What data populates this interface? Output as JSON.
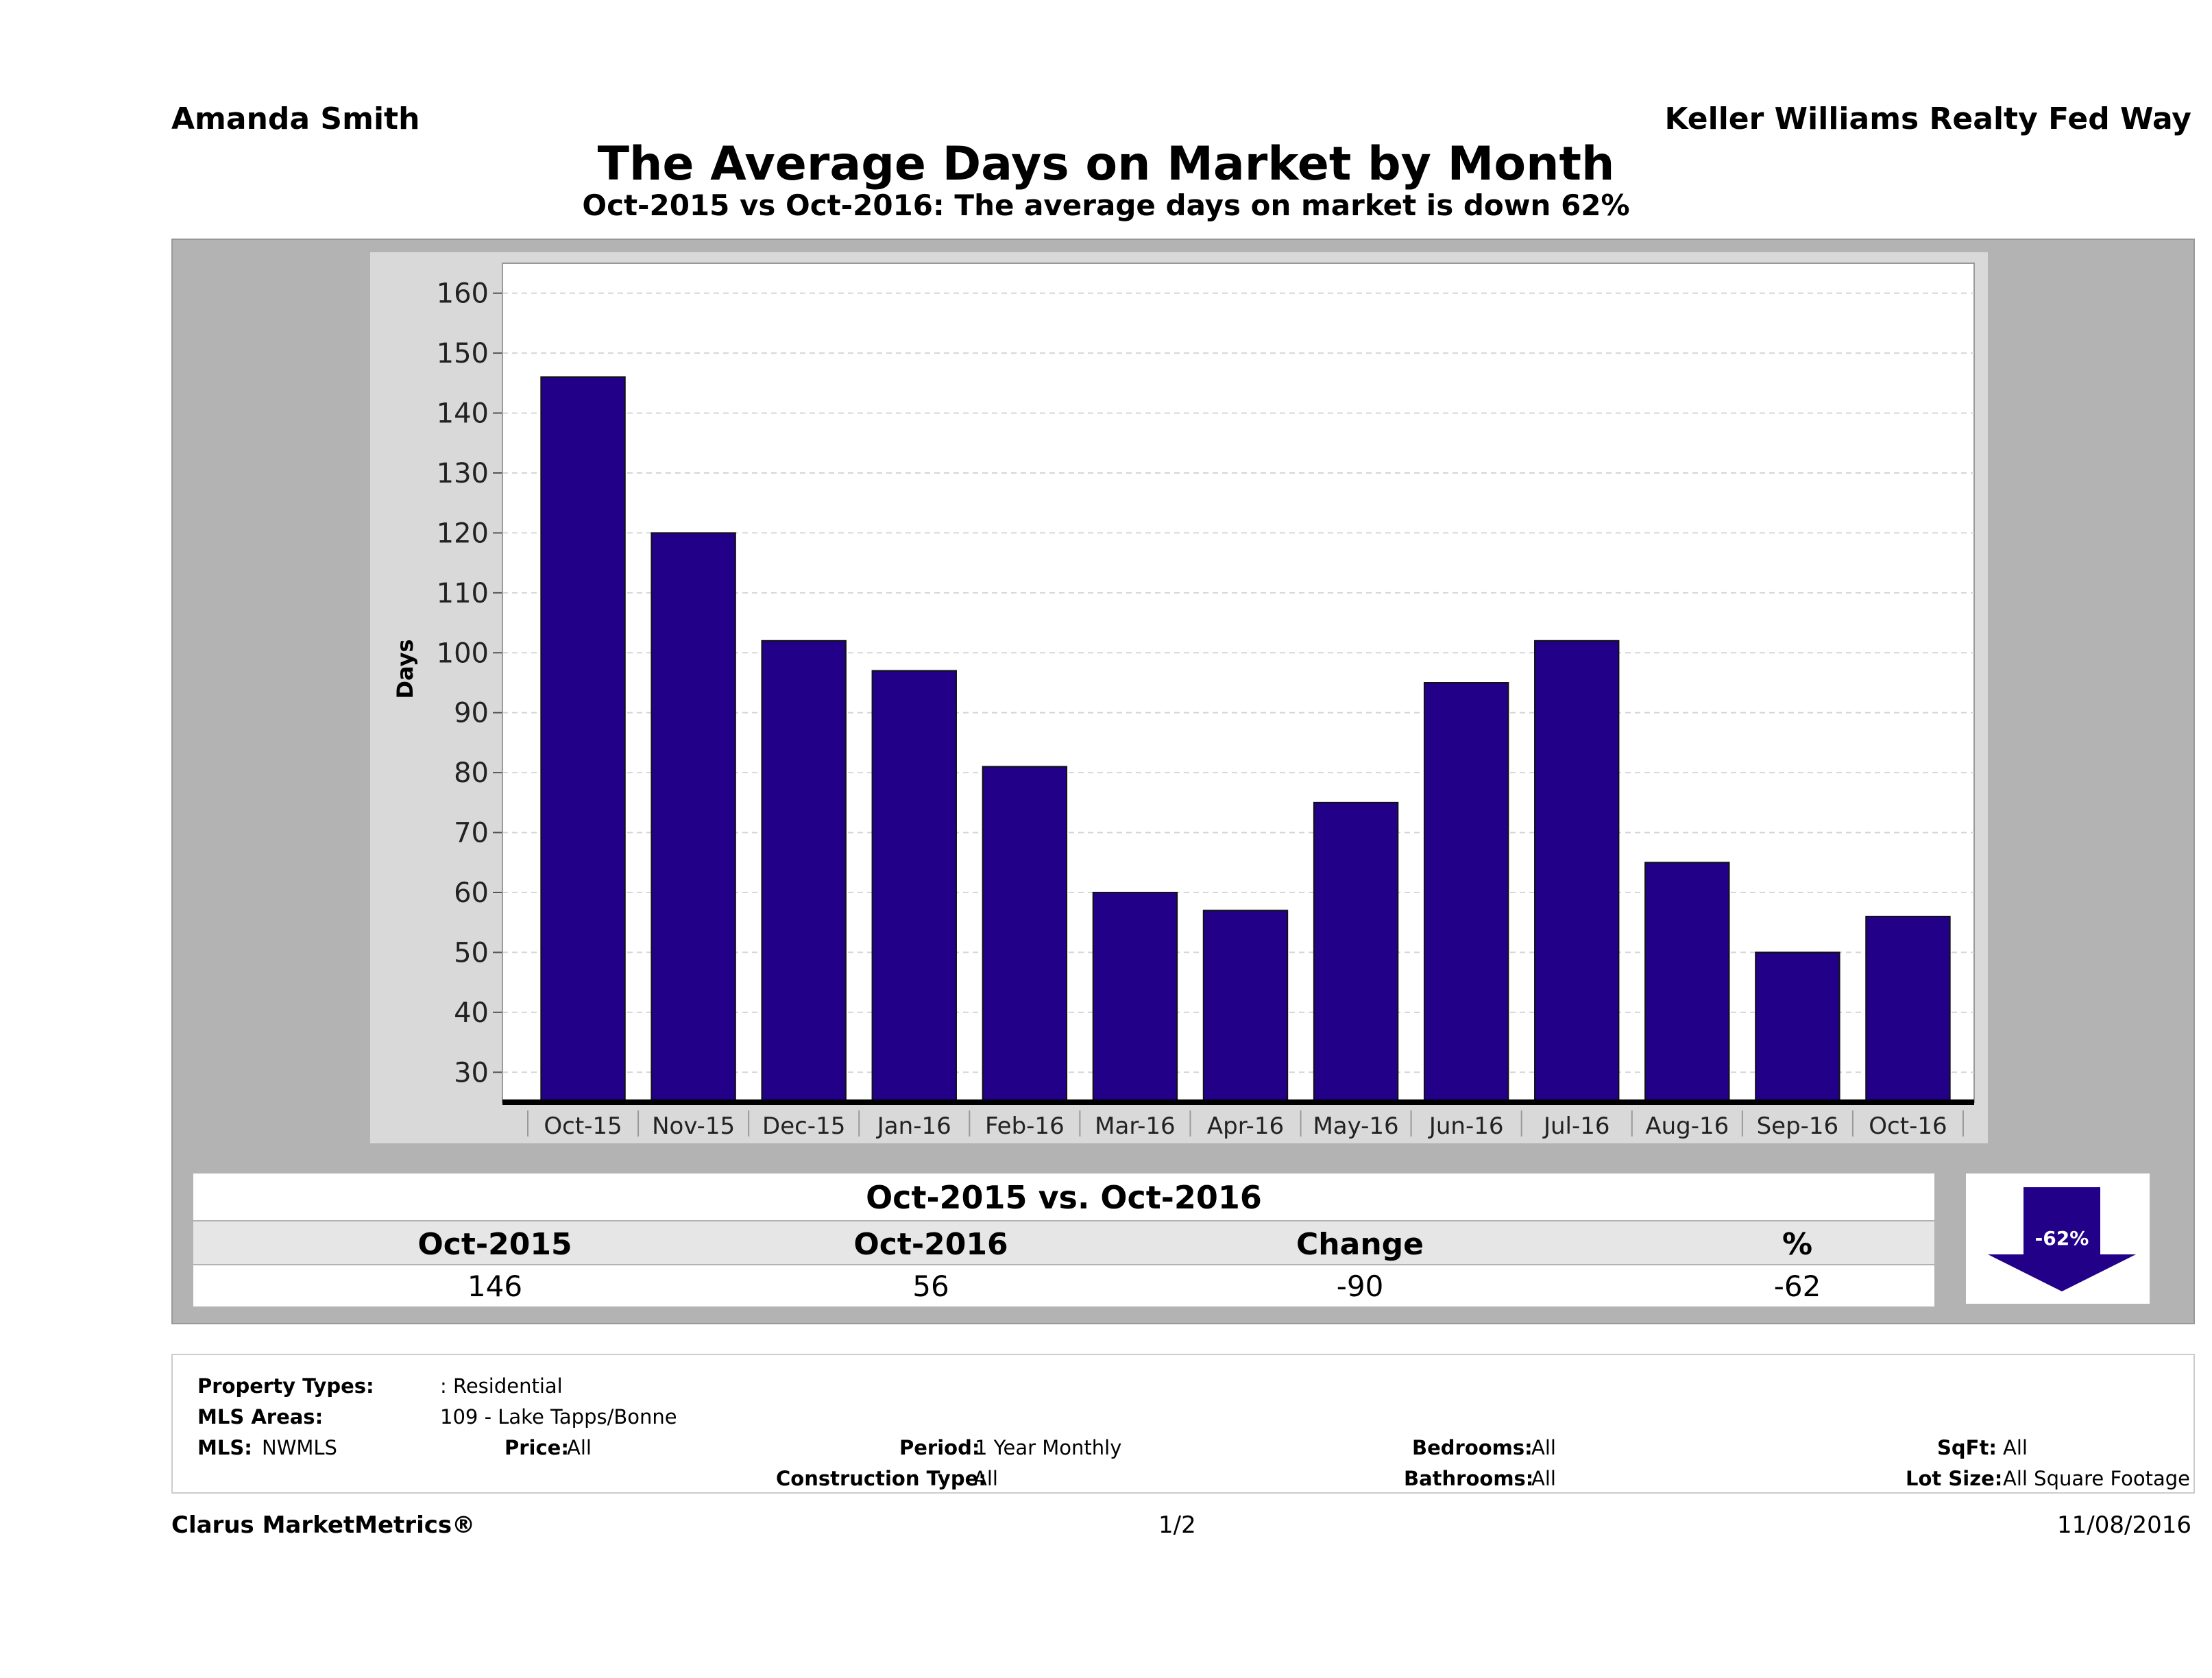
{
  "header": {
    "agent": "Amanda Smith",
    "company": "Keller Williams Realty Fed Way",
    "title": "The Average Days on Market by Month",
    "subtitle": "Oct-2015 vs Oct-2016: The average days on market is down 62%"
  },
  "chart_data": {
    "type": "bar",
    "ylabel": "Days",
    "xlabel": "",
    "ylim": [
      25,
      165
    ],
    "yticks": [
      30,
      40,
      50,
      60,
      70,
      80,
      90,
      100,
      110,
      120,
      130,
      140,
      150,
      160
    ],
    "grid": true,
    "categories": [
      "Oct-15",
      "Nov-15",
      "Dec-15",
      "Jan-16",
      "Feb-16",
      "Mar-16",
      "Apr-16",
      "May-16",
      "Jun-16",
      "Jul-16",
      "Aug-16",
      "Sep-16",
      "Oct-16"
    ],
    "values": [
      146,
      120,
      102,
      97,
      81,
      60,
      57,
      75,
      95,
      102,
      65,
      50,
      56
    ],
    "bar_color": "#220088"
  },
  "summary": {
    "title": "Oct-2015 vs. Oct-2016",
    "headers": [
      "Oct-2015",
      "Oct-2016",
      "Change",
      "%"
    ],
    "values": [
      "146",
      "56",
      "-90",
      "-62"
    ],
    "badge": "-62%",
    "badge_icon": "down-arrow-icon"
  },
  "criteria": {
    "property_types_label": "Property Types:",
    "property_types_value": ": Residential",
    "mls_areas_label": "MLS Areas:",
    "mls_areas_value": "109 - Lake Tapps/Bonne",
    "mls_label": "MLS:",
    "mls_value": "NWMLS",
    "price_label": "Price:",
    "price_value": "All",
    "period_label": "Period:",
    "period_value": "1 Year Monthly",
    "construction_label": "Construction Type:",
    "construction_value": "All",
    "bedrooms_label": "Bedrooms:",
    "bedrooms_value": "All",
    "bathrooms_label": "Bathrooms:",
    "bathrooms_value": "All",
    "sqft_label": "SqFt:",
    "sqft_value": "All",
    "lot_label": "Lot Size:",
    "lot_value": "All Square Footage"
  },
  "footer": {
    "brand": "Clarus MarketMetrics®",
    "page": "1/2",
    "date": "11/08/2016"
  }
}
